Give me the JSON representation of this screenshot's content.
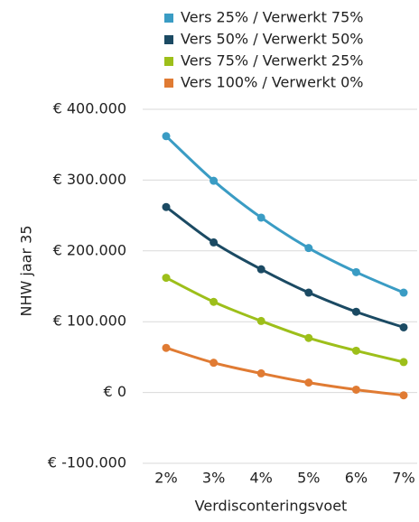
{
  "chart_data": {
    "type": "line",
    "x_label": "Verdisconteringsvoet",
    "y_label": "NHW jaar 35",
    "categories": [
      "2%",
      "3%",
      "4%",
      "5%",
      "6%",
      "7%"
    ],
    "series": [
      {
        "name": "Vers 25% / Verwerkt 75%",
        "color": "#3a9cc4",
        "values": [
          362000,
          299000,
          247000,
          204000,
          170000,
          141000
        ]
      },
      {
        "name": "Vers 50% / Verwerkt 50%",
        "color": "#1b4a63",
        "values": [
          262000,
          212000,
          174000,
          141000,
          114000,
          92000
        ]
      },
      {
        "name": "Vers 75% / Verwerkt 25%",
        "color": "#9dbf1a",
        "values": [
          162000,
          128000,
          101000,
          77000,
          59000,
          43000
        ]
      },
      {
        "name": "Vers 100% / Verwerkt 0%",
        "color": "#e07b33",
        "values": [
          63000,
          42000,
          27000,
          14000,
          4000,
          -4000
        ]
      }
    ],
    "ylim": [
      -100000,
      400000
    ],
    "yticks": [
      {
        "value": -100000,
        "label": "€ -100.000"
      },
      {
        "value": 0,
        "label": "€ 0"
      },
      {
        "value": 100000,
        "label": "€ 100.000"
      },
      {
        "value": 200000,
        "label": "€ 200.000"
      },
      {
        "value": 300000,
        "label": "€ 300.000"
      },
      {
        "value": 400000,
        "label": "€ 400.000"
      }
    ],
    "grid": true,
    "legend": "top"
  }
}
